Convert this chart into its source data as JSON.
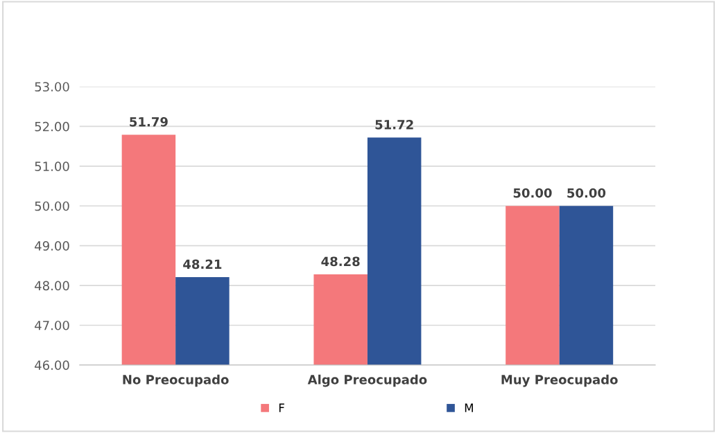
{
  "chart_data": {
    "type": "bar",
    "categories": [
      "No Preocupado",
      "Algo Preocupado",
      "Muy Preocupado"
    ],
    "series": [
      {
        "name": "F",
        "color": "#f4787b",
        "values": [
          51.79,
          48.28,
          50.0
        ],
        "value_labels": [
          "51.79",
          "48.28",
          "50.00"
        ]
      },
      {
        "name": "M",
        "color": "#2f5597",
        "values": [
          48.21,
          51.72,
          50.0
        ],
        "value_labels": [
          "48.21",
          "51.72",
          "50.00"
        ]
      }
    ],
    "ylim": [
      46,
      53
    ],
    "yticks": [
      {
        "value": 46,
        "label": "46.00"
      },
      {
        "value": 47,
        "label": "47.00"
      },
      {
        "value": 48,
        "label": "48.00"
      },
      {
        "value": 49,
        "label": "49.00"
      },
      {
        "value": 50,
        "label": "50.00"
      },
      {
        "value": 51,
        "label": "51.00"
      },
      {
        "value": 52,
        "label": "52.00"
      },
      {
        "value": 53,
        "label": "53.00"
      }
    ],
    "grid": "y",
    "legend": "bottom"
  }
}
